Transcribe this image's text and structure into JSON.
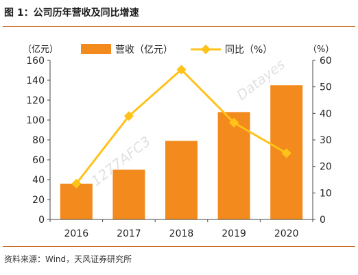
{
  "figure": {
    "title": "图 1：公司历年营收及同比增速",
    "source": "资料来源：Wind，天风证券研究所",
    "watermark": "1277AFC3   Datayes"
  },
  "colors": {
    "bar": "#f28a1d",
    "line": "#ffc21a",
    "rule": "#c8651b",
    "axis": "#444444"
  },
  "chart_data": {
    "type": "bar+line",
    "categories": [
      "2016",
      "2017",
      "2018",
      "2019",
      "2020"
    ],
    "series": [
      {
        "name": "营收（亿元）",
        "type": "bar",
        "axis": "left",
        "values": [
          36,
          50,
          79,
          108,
          135
        ]
      },
      {
        "name": "同比（%）",
        "type": "line",
        "axis": "right",
        "values": [
          13.5,
          39,
          56.5,
          36.5,
          25
        ]
      }
    ],
    "left_axis": {
      "unit": "（亿元）",
      "ylim": [
        0,
        160
      ],
      "ticks": [
        "0",
        "20",
        "40",
        "60",
        "80",
        "100",
        "120",
        "140",
        "160"
      ]
    },
    "right_axis": {
      "unit": "（%）",
      "ylim": [
        0,
        60
      ],
      "ticks": [
        "0",
        "10",
        "20",
        "30",
        "40",
        "50",
        "60"
      ]
    },
    "legend_position": "top-center",
    "grid": false
  }
}
